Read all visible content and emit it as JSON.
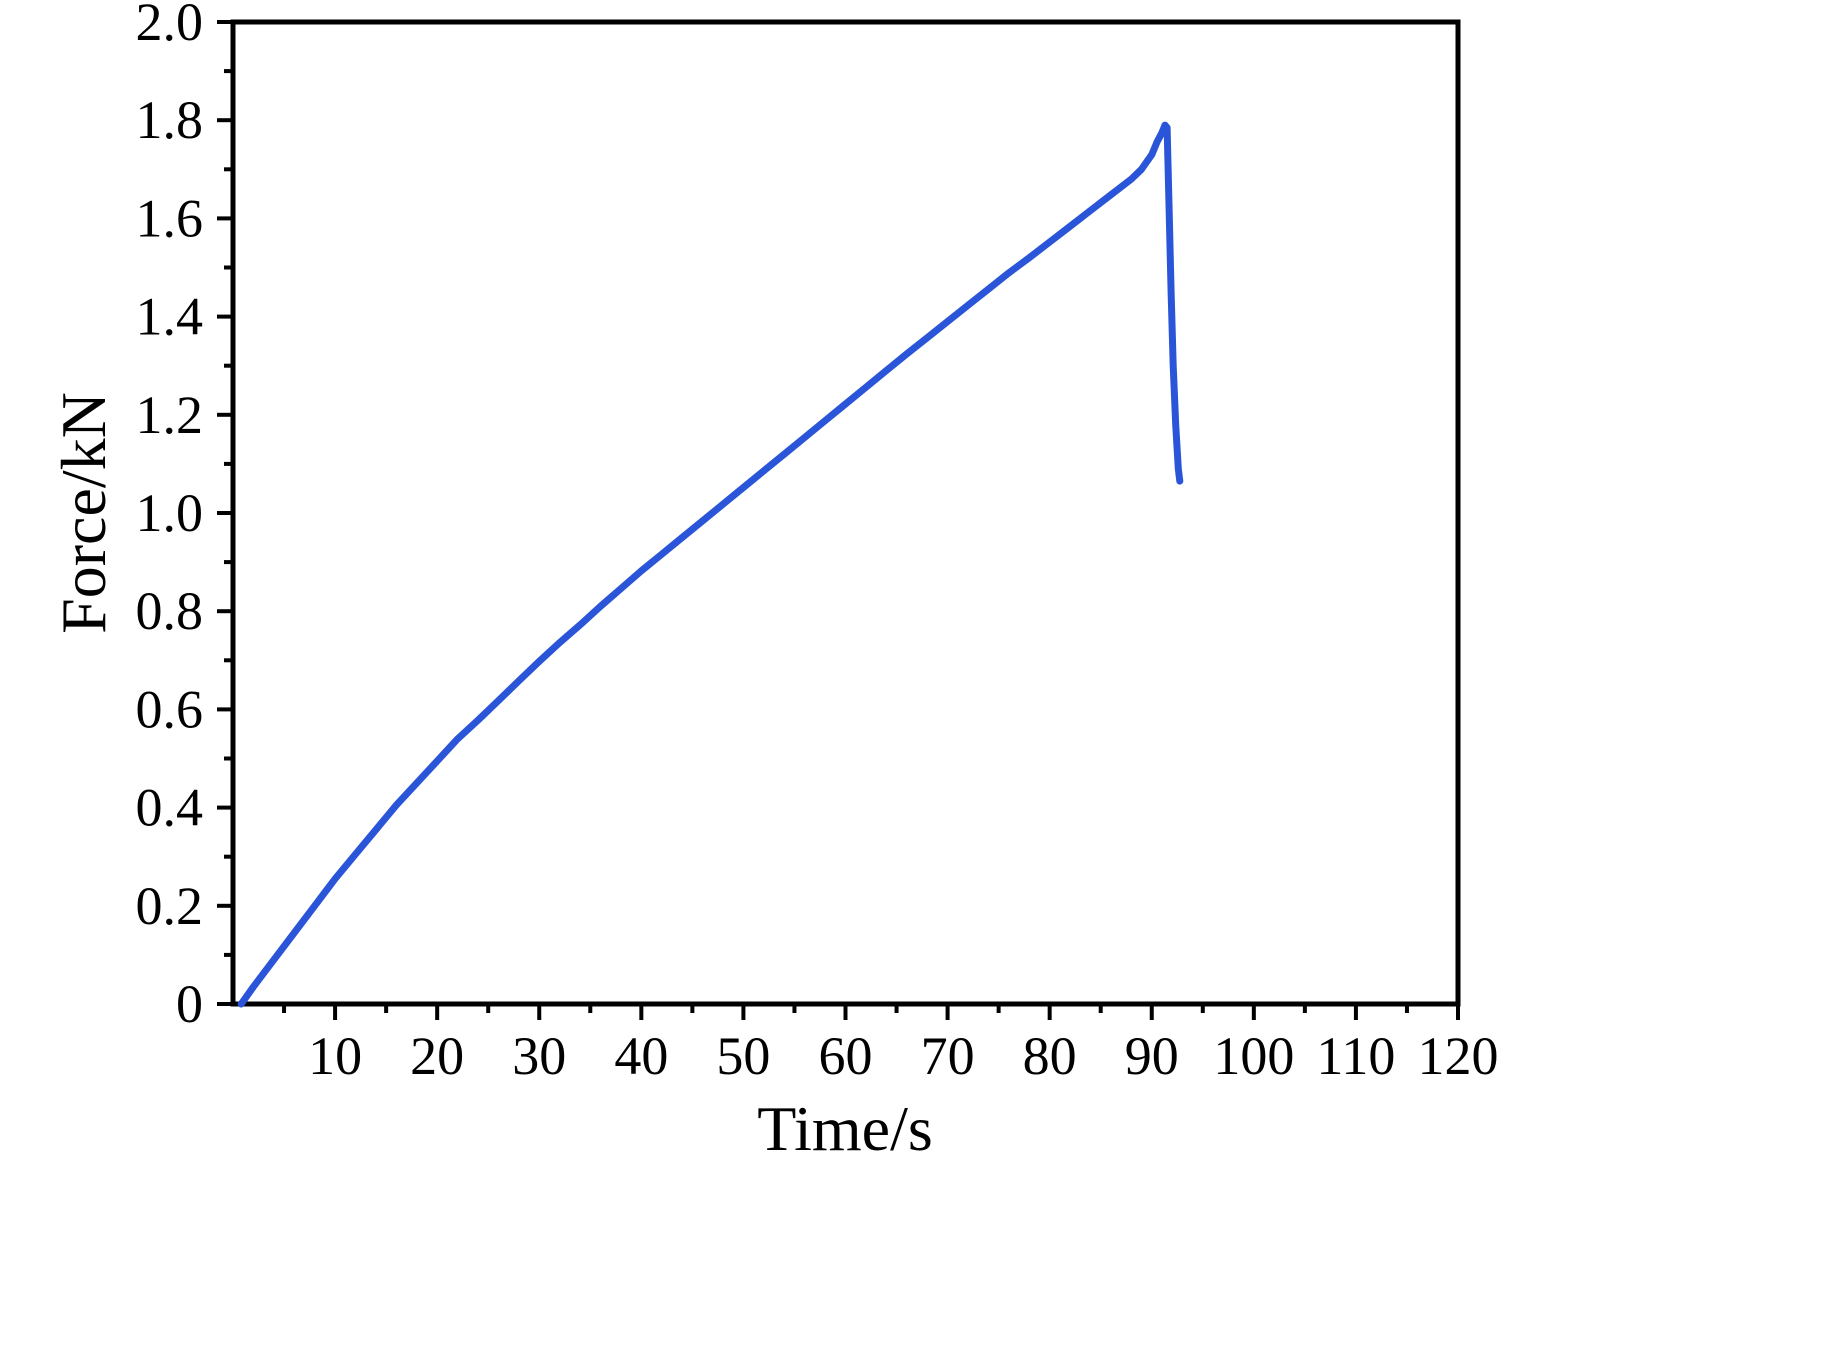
{
  "chart_data": {
    "type": "line",
    "title": "",
    "xlabel": "Time/s",
    "ylabel": "Force/kN",
    "xlim": [
      0,
      120
    ],
    "ylim": [
      0,
      2.0
    ],
    "grid": false,
    "legend": "none",
    "x_ticks": [
      10,
      20,
      30,
      40,
      50,
      60,
      70,
      80,
      90,
      100,
      110,
      120
    ],
    "x_tick_labels": [
      "10",
      "20",
      "30",
      "40",
      "50",
      "60",
      "70",
      "80",
      "90",
      "100",
      "110",
      "120"
    ],
    "x_minor_step": 5,
    "y_ticks": [
      0,
      0.2,
      0.4,
      0.6,
      0.8,
      1.0,
      1.2,
      1.4,
      1.6,
      1.8,
      2.0
    ],
    "y_tick_labels": [
      "0",
      "0.2",
      "0.4",
      "0.6",
      "0.8",
      "1.0",
      "1.2",
      "1.4",
      "1.6",
      "1.8",
      "2.0"
    ],
    "y_minor_step": 0.1,
    "series": [
      {
        "name": "force-vs-time",
        "color": "#2b55d8",
        "peak_force_kN": 1.79,
        "peak_time_s": 91,
        "points": [
          [
            0.8,
            0.0
          ],
          [
            2,
            0.035
          ],
          [
            4,
            0.09
          ],
          [
            6,
            0.145
          ],
          [
            8,
            0.2
          ],
          [
            10,
            0.255
          ],
          [
            12,
            0.305
          ],
          [
            14,
            0.355
          ],
          [
            16,
            0.405
          ],
          [
            18,
            0.45
          ],
          [
            20,
            0.495
          ],
          [
            22,
            0.54
          ],
          [
            24,
            0.578
          ],
          [
            26,
            0.618
          ],
          [
            28,
            0.658
          ],
          [
            30,
            0.698
          ],
          [
            32,
            0.736
          ],
          [
            34,
            0.772
          ],
          [
            36,
            0.81
          ],
          [
            38,
            0.846
          ],
          [
            40,
            0.882
          ],
          [
            42,
            0.916
          ],
          [
            44,
            0.95
          ],
          [
            46,
            0.984
          ],
          [
            48,
            1.018
          ],
          [
            50,
            1.052
          ],
          [
            52,
            1.086
          ],
          [
            54,
            1.12
          ],
          [
            56,
            1.154
          ],
          [
            58,
            1.188
          ],
          [
            60,
            1.222
          ],
          [
            62,
            1.256
          ],
          [
            64,
            1.29
          ],
          [
            66,
            1.324
          ],
          [
            68,
            1.357
          ],
          [
            70,
            1.39
          ],
          [
            72,
            1.423
          ],
          [
            74,
            1.456
          ],
          [
            76,
            1.489
          ],
          [
            78,
            1.52
          ],
          [
            80,
            1.552
          ],
          [
            82,
            1.584
          ],
          [
            84,
            1.616
          ],
          [
            86,
            1.648
          ],
          [
            88,
            1.68
          ],
          [
            89,
            1.7
          ],
          [
            90,
            1.73
          ],
          [
            90.5,
            1.755
          ],
          [
            91,
            1.775
          ],
          [
            91.3,
            1.79
          ],
          [
            91.5,
            1.785
          ],
          [
            91.7,
            1.62
          ],
          [
            91.9,
            1.45
          ],
          [
            92.1,
            1.3
          ],
          [
            92.35,
            1.18
          ],
          [
            92.6,
            1.09
          ],
          [
            92.75,
            1.065
          ]
        ]
      }
    ]
  }
}
